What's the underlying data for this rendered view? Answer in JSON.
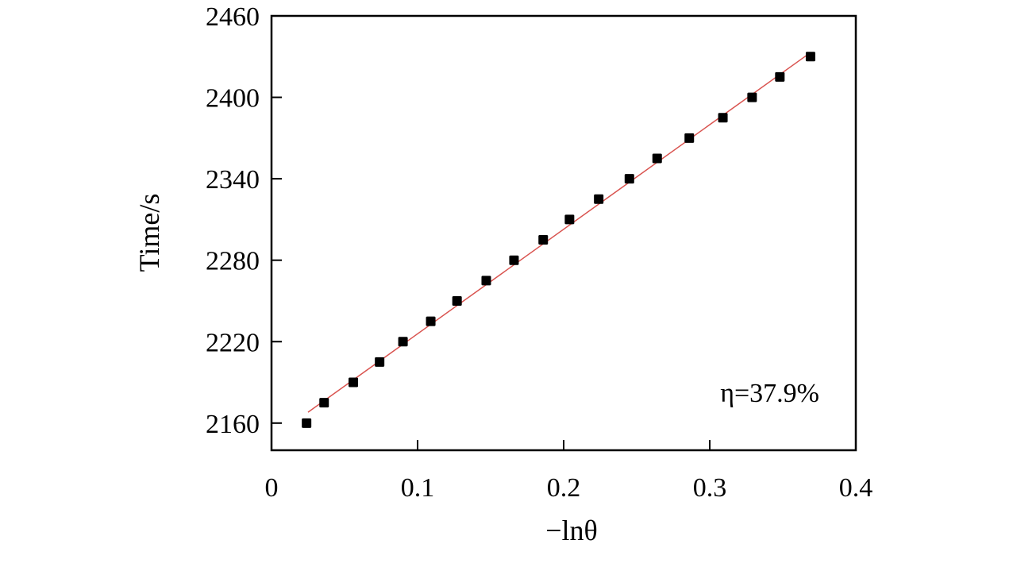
{
  "chart_data": {
    "type": "scatter",
    "xlabel": "−lnθ",
    "ylabel": "Time/s",
    "xlim": [
      0,
      0.4
    ],
    "ylim": [
      2140,
      2460
    ],
    "x_ticks": [
      0,
      0.1,
      0.2,
      0.3,
      0.4
    ],
    "x_tick_labels": [
      "0",
      "0.1",
      "0.2",
      "0.3",
      "0.4"
    ],
    "y_ticks": [
      2160,
      2220,
      2280,
      2340,
      2400,
      2460
    ],
    "y_tick_labels": [
      "2160",
      "2220",
      "2280",
      "2340",
      "2400",
      "2460"
    ],
    "grid": false,
    "annotation": "η=37.9%",
    "series": [
      {
        "marker": "square",
        "color": "#000000",
        "x": [
          0.024,
          0.036,
          0.056,
          0.074,
          0.09,
          0.109,
          0.127,
          0.147,
          0.166,
          0.186,
          0.204,
          0.224,
          0.245,
          0.264,
          0.286,
          0.309,
          0.329,
          0.348,
          0.369
        ],
        "y": [
          2160,
          2175,
          2190,
          2205,
          2220,
          2235,
          2250,
          2265,
          2280,
          2295,
          2310,
          2325,
          2340,
          2355,
          2370,
          2385,
          2400,
          2415,
          2430
        ]
      }
    ],
    "fit_line": {
      "color": "#d9534f",
      "x": [
        0.025,
        0.369
      ],
      "y": [
        2168,
        2433
      ]
    }
  }
}
